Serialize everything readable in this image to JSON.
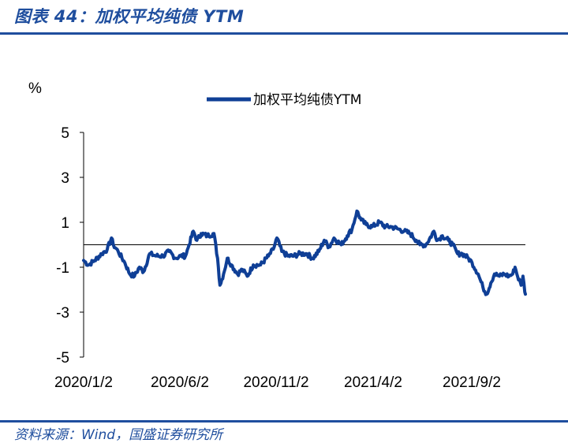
{
  "header": {
    "title": "图表 44：加权平均纯债 YTM"
  },
  "footer": {
    "source": "资料来源：Wind，国盛证券研究所"
  },
  "colors": {
    "brand": "#1f4e9e",
    "series": "#0f3f96",
    "axis": "#000000"
  },
  "chart_data": {
    "type": "line",
    "title": "",
    "ylabel": "%",
    "xlabel": "",
    "ylim": [
      -5,
      5
    ],
    "y_ticks": [
      5,
      3,
      1,
      -1,
      -3,
      -5
    ],
    "x_ticks": [
      "2020/1/2",
      "2020/6/2",
      "2020/11/2",
      "2021/4/2",
      "2021/9/2"
    ],
    "x_range": [
      "2020-01-02",
      "2021-12-31"
    ],
    "legend": "top-center",
    "grid": false,
    "zero_line": true,
    "series": [
      {
        "name": "加权平均纯债YTM",
        "color": "#0f3f96",
        "points": [
          [
            "2020-01-02",
            -0.7
          ],
          [
            "2020-01-10",
            -0.9
          ],
          [
            "2020-01-20",
            -0.7
          ],
          [
            "2020-02-01",
            -0.4
          ],
          [
            "2020-02-10",
            -0.2
          ],
          [
            "2020-02-17",
            0.3
          ],
          [
            "2020-02-20",
            0.0
          ],
          [
            "2020-02-28",
            -0.3
          ],
          [
            "2020-03-10",
            -0.8
          ],
          [
            "2020-03-18",
            -1.3
          ],
          [
            "2020-03-26",
            -1.4
          ],
          [
            "2020-04-03",
            -1.0
          ],
          [
            "2020-04-10",
            -1.2
          ],
          [
            "2020-04-20",
            -0.4
          ],
          [
            "2020-05-01",
            -0.5
          ],
          [
            "2020-05-12",
            -0.5
          ],
          [
            "2020-05-22",
            -0.3
          ],
          [
            "2020-06-02",
            -0.6
          ],
          [
            "2020-06-10",
            -0.5
          ],
          [
            "2020-06-18",
            -0.5
          ],
          [
            "2020-06-24",
            0.0
          ],
          [
            "2020-07-01",
            0.6
          ],
          [
            "2020-07-07",
            0.2
          ],
          [
            "2020-07-14",
            0.5
          ],
          [
            "2020-07-24",
            0.4
          ],
          [
            "2020-08-04",
            0.5
          ],
          [
            "2020-08-10",
            -0.6
          ],
          [
            "2020-08-14",
            -1.8
          ],
          [
            "2020-08-20",
            -1.3
          ],
          [
            "2020-08-26",
            -0.6
          ],
          [
            "2020-09-02",
            -0.9
          ],
          [
            "2020-09-12",
            -1.3
          ],
          [
            "2020-09-20",
            -1.1
          ],
          [
            "2020-09-28",
            -1.4
          ],
          [
            "2020-10-08",
            -0.9
          ],
          [
            "2020-10-20",
            -0.9
          ],
          [
            "2020-11-02",
            -0.5
          ],
          [
            "2020-11-10",
            -0.2
          ],
          [
            "2020-11-16",
            0.3
          ],
          [
            "2020-11-24",
            -0.3
          ],
          [
            "2020-12-04",
            -0.5
          ],
          [
            "2020-12-14",
            -0.5
          ],
          [
            "2020-12-24",
            -0.4
          ],
          [
            "2021-01-04",
            -0.4
          ],
          [
            "2021-01-14",
            -0.6
          ],
          [
            "2021-01-24",
            -0.3
          ],
          [
            "2021-02-02",
            0.2
          ],
          [
            "2021-02-10",
            -0.1
          ],
          [
            "2021-02-18",
            0.3
          ],
          [
            "2021-03-02",
            0.0
          ],
          [
            "2021-03-12",
            0.4
          ],
          [
            "2021-03-20",
            0.7
          ],
          [
            "2021-03-28",
            1.5
          ],
          [
            "2021-04-04",
            1.1
          ],
          [
            "2021-04-12",
            0.9
          ],
          [
            "2021-04-22",
            0.8
          ],
          [
            "2021-05-04",
            1.0
          ],
          [
            "2021-05-14",
            0.8
          ],
          [
            "2021-05-24",
            0.8
          ],
          [
            "2021-06-04",
            0.7
          ],
          [
            "2021-06-14",
            0.6
          ],
          [
            "2021-06-24",
            0.5
          ],
          [
            "2021-07-04",
            0.2
          ],
          [
            "2021-07-10",
            0.0
          ],
          [
            "2021-07-20",
            0.0
          ],
          [
            "2021-08-02",
            0.6
          ],
          [
            "2021-08-08",
            0.2
          ],
          [
            "2021-08-16",
            0.4
          ],
          [
            "2021-08-26",
            0.2
          ],
          [
            "2021-09-02",
            0.0
          ],
          [
            "2021-09-10",
            -0.4
          ],
          [
            "2021-09-18",
            -0.4
          ],
          [
            "2021-09-28",
            -0.6
          ],
          [
            "2021-10-04",
            -0.8
          ],
          [
            "2021-10-14",
            -1.3
          ],
          [
            "2021-10-22",
            -1.9
          ],
          [
            "2021-10-28",
            -2.2
          ],
          [
            "2021-11-04",
            -1.7
          ],
          [
            "2021-11-10",
            -1.3
          ],
          [
            "2021-11-18",
            -1.4
          ],
          [
            "2021-11-26",
            -1.3
          ],
          [
            "2021-12-04",
            -1.4
          ],
          [
            "2021-12-10",
            -1.3
          ],
          [
            "2021-12-14",
            -1.0
          ],
          [
            "2021-12-18",
            -1.4
          ],
          [
            "2021-12-24",
            -1.8
          ],
          [
            "2021-12-27",
            -1.4
          ],
          [
            "2021-12-30",
            -2.1
          ],
          [
            "2021-12-31",
            -2.2
          ]
        ]
      }
    ]
  }
}
